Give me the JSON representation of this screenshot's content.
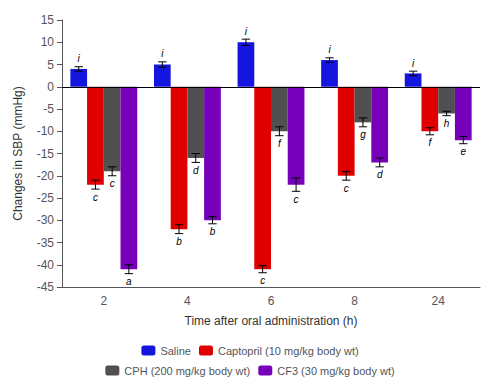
{
  "chart_data": {
    "type": "bar",
    "categories": [
      "2",
      "4",
      "6",
      "8",
      "24"
    ],
    "xlabel": "Time after oral administration (h)",
    "ylabel": "Changes in SBP (mmHg)",
    "ylim": [
      -45,
      15
    ],
    "yticks": [
      -45,
      -40,
      -35,
      -30,
      -25,
      -20,
      -15,
      -10,
      -5,
      0,
      5,
      10,
      15
    ],
    "grid": false,
    "legend": "bottom",
    "series": [
      {
        "name": "Saline",
        "color": "#1515e0",
        "values": [
          4,
          5,
          10,
          6,
          3
        ],
        "errors": [
          0.5,
          0.6,
          0.7,
          0.5,
          0.5
        ],
        "labels": [
          "i",
          "i",
          "i",
          "i",
          "i"
        ]
      },
      {
        "name": "Captopril (10 mg/kg body wt)",
        "color": "#e00000",
        "values": [
          -22,
          -32,
          -41,
          -20,
          -10
        ],
        "errors": [
          1.0,
          1.0,
          0.8,
          1.0,
          0.8
        ],
        "labels": [
          "c",
          "b",
          "c",
          "c",
          "f"
        ]
      },
      {
        "name": "CPH (200 mg/kg body wt)",
        "color": "#505050",
        "values": [
          -19,
          -16,
          -10,
          -8,
          -6
        ],
        "errors": [
          1.0,
          1.0,
          1.0,
          1.0,
          0.5
        ],
        "labels": [
          "c",
          "d",
          "f",
          "g",
          "h"
        ]
      },
      {
        "name": "CF3 (30 mg/kg body wt)",
        "color": "#7700bb",
        "values": [
          -41,
          -30,
          -22,
          -17,
          -12
        ],
        "errors": [
          1.0,
          0.8,
          1.5,
          1.0,
          0.8
        ],
        "labels": [
          "a",
          "b",
          "c",
          "d",
          "e"
        ]
      }
    ]
  }
}
